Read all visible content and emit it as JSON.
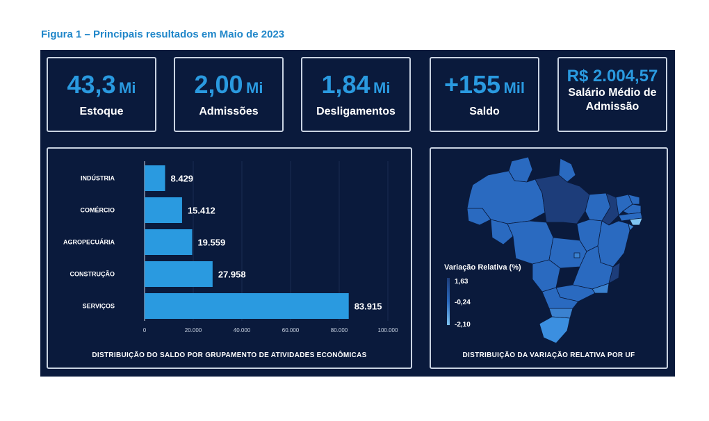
{
  "figure_title": "Figura 1 – Principais resultados em Maio de 2023",
  "kpis": [
    {
      "value": "43,3",
      "unit": "Mi",
      "label": "Estoque"
    },
    {
      "value": "2,00",
      "unit": "Mi",
      "label": "Admissões"
    },
    {
      "value": "1,84",
      "unit": "Mi",
      "label": "Desligamentos"
    },
    {
      "value": "+155",
      "unit": "Mil",
      "label": "Saldo"
    },
    {
      "value": "R$ 2.004,57",
      "label_line1": "Salário Médio de",
      "label_line2": "Admissão"
    }
  ],
  "chart_data": [
    {
      "type": "bar",
      "orientation": "horizontal",
      "categories": [
        "INDÚSTRIA",
        "COMÉRCIO",
        "AGROPECUÁRIA",
        "CONSTRUÇÃO",
        "SERVIÇOS"
      ],
      "values": [
        8429,
        15412,
        19559,
        27958,
        83915
      ],
      "value_labels": [
        "8.429",
        "15.412",
        "19.559",
        "27.958",
        "83.915"
      ],
      "x_ticks": [
        "0",
        "20.000",
        "40.000",
        "60.000",
        "80.000",
        "100.000"
      ],
      "xlim": [
        0,
        100000
      ],
      "bar_color": "#2a9ae0",
      "caption": "DISTRIBUIÇÃO DO SALDO POR GRUPAMENTO DE ATIVIDADES ECONÔMICAS"
    },
    {
      "type": "choropleth",
      "region": "Brazil states (UF)",
      "legend_title": "Variação Relativa (%)",
      "legend_ticks": [
        "1,63",
        "-0,24",
        "-2,10"
      ],
      "color_max": "#1d3d7a",
      "color_mid": "#2a6ac0",
      "color_min": "#7fc4f2",
      "caption": "DISTRIBUIÇÃO DA VARIAÇÃO RELATIVA POR UF"
    }
  ]
}
